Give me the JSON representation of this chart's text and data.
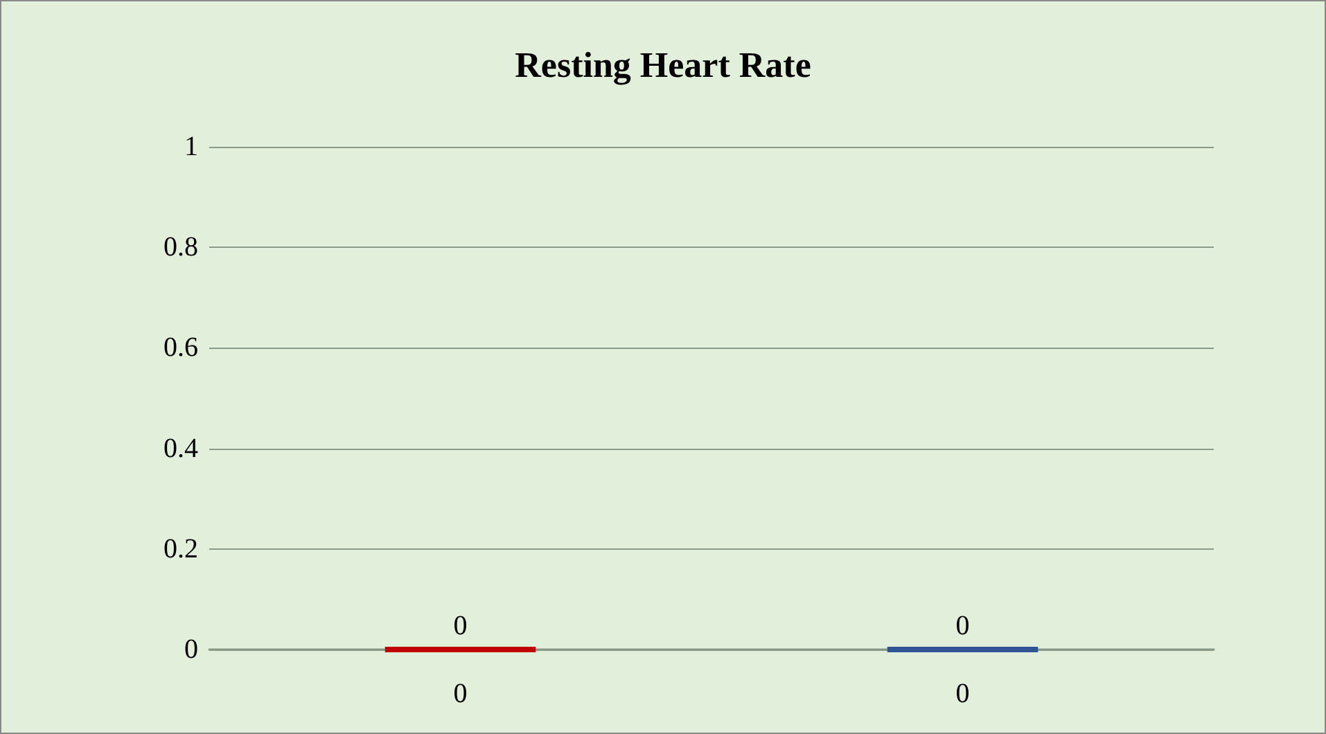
{
  "chart_data": {
    "type": "bar",
    "title": "Resting Heart Rate",
    "categories": [
      "0",
      "0"
    ],
    "values": [
      0,
      0
    ],
    "colors": [
      "#c00000",
      "#2f5597"
    ],
    "data_labels": true,
    "ylim": [
      0,
      1
    ],
    "yticks": [
      0,
      0.2,
      0.4,
      0.6,
      0.8,
      1
    ],
    "grid": "y"
  }
}
